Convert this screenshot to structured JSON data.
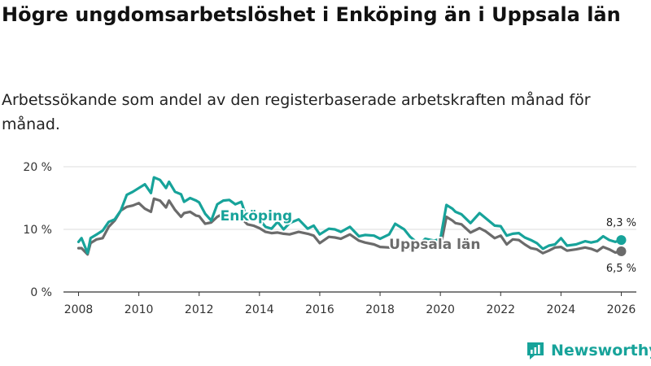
{
  "title": "Högre ungdomsarbetslöshet i Enköping än i Uppsala län",
  "subtitle": "Arbetssökande som andel av den registerbaserade arbetskraften månad för månad.",
  "brand": "Newsworthy",
  "colors": {
    "enkoping": "#17a39a",
    "uppsala": "#6b6b6b",
    "grid": "#dddddd",
    "axis": "#333333"
  },
  "chart_data": {
    "type": "line",
    "title": "Högre ungdomsarbetslöshet i Enköping än i Uppsala län",
    "xlabel": "",
    "ylabel": "",
    "xlim": [
      2007.5,
      2026.5
    ],
    "ylim": [
      0,
      20
    ],
    "y_ticks": [
      0,
      10,
      20
    ],
    "y_tick_labels": [
      "0 %",
      "10 %",
      "20 %"
    ],
    "x_ticks": [
      2008,
      2010,
      2012,
      2014,
      2016,
      2018,
      2020,
      2022,
      2024,
      2026
    ],
    "x_tick_labels": [
      "2008",
      "2010",
      "2012",
      "2014",
      "2016",
      "2018",
      "2020",
      "2022",
      "2024",
      "2026"
    ],
    "grid": true,
    "series": [
      {
        "name": "Enköping",
        "label": "Enköping",
        "color": "#17a39a",
        "end_label": "8,3 %",
        "x": [
          2008.0,
          2008.1,
          2008.3,
          2008.4,
          2008.6,
          2008.8,
          2009.0,
          2009.2,
          2009.4,
          2009.6,
          2009.8,
          2010.0,
          2010.2,
          2010.4,
          2010.5,
          2010.7,
          2010.9,
          2011.0,
          2011.2,
          2011.4,
          2011.5,
          2011.7,
          2011.9,
          2012.0,
          2012.2,
          2012.4,
          2012.6,
          2012.8,
          2013.0,
          2013.2,
          2013.4,
          2013.6,
          2013.8,
          2014.0,
          2014.2,
          2014.4,
          2014.6,
          2014.8,
          2015.0,
          2015.3,
          2015.6,
          2015.8,
          2016.0,
          2016.3,
          2016.5,
          2016.7,
          2017.0,
          2017.3,
          2017.5,
          2017.8,
          2018.0,
          2018.3,
          2018.5,
          2018.8,
          2019.0,
          2019.3,
          2019.5,
          2019.8,
          2020.0,
          2020.2,
          2020.4,
          2020.5,
          2020.7,
          2021.0,
          2021.3,
          2021.5,
          2021.8,
          2022.0,
          2022.2,
          2022.4,
          2022.6,
          2022.8,
          2023.0,
          2023.2,
          2023.4,
          2023.6,
          2023.8,
          2024.0,
          2024.2,
          2024.5,
          2024.8,
          2025.0,
          2025.2,
          2025.4,
          2025.6,
          2025.8,
          2026.0
        ],
        "values": [
          8.0,
          8.6,
          6.2,
          8.6,
          9.2,
          9.8,
          11.2,
          11.6,
          13.0,
          15.5,
          16.0,
          16.6,
          17.2,
          15.8,
          18.3,
          17.9,
          16.6,
          17.6,
          16.0,
          15.6,
          14.4,
          15.0,
          14.6,
          14.3,
          12.5,
          11.4,
          14.0,
          14.6,
          14.7,
          14.0,
          14.4,
          11.5,
          12.3,
          11.6,
          10.4,
          10.1,
          11.2,
          10.0,
          11.0,
          11.6,
          10.1,
          10.6,
          9.2,
          10.1,
          10.0,
          9.6,
          10.4,
          8.9,
          9.1,
          9.0,
          8.5,
          9.2,
          10.9,
          10.0,
          8.8,
          7.6,
          8.5,
          8.2,
          8.5,
          13.9,
          13.3,
          12.8,
          12.4,
          11.0,
          12.6,
          11.8,
          10.6,
          10.5,
          9.0,
          9.3,
          9.4,
          8.7,
          8.3,
          7.8,
          6.9,
          7.4,
          7.6,
          8.6,
          7.4,
          7.6,
          8.1,
          7.9,
          8.1,
          8.9,
          8.3,
          8.0,
          8.3
        ]
      },
      {
        "name": "Uppsala län",
        "label": "Uppsala län",
        "color": "#6b6b6b",
        "end_label": "6,5 %",
        "x": [
          2008.0,
          2008.1,
          2008.3,
          2008.4,
          2008.6,
          2008.8,
          2009.0,
          2009.2,
          2009.4,
          2009.6,
          2009.8,
          2010.0,
          2010.2,
          2010.4,
          2010.5,
          2010.7,
          2010.9,
          2011.0,
          2011.2,
          2011.4,
          2011.5,
          2011.7,
          2011.9,
          2012.0,
          2012.2,
          2012.4,
          2012.6,
          2012.8,
          2013.0,
          2013.2,
          2013.4,
          2013.6,
          2013.8,
          2014.0,
          2014.2,
          2014.4,
          2014.6,
          2014.8,
          2015.0,
          2015.3,
          2015.6,
          2015.8,
          2016.0,
          2016.3,
          2016.5,
          2016.7,
          2017.0,
          2017.3,
          2017.5,
          2017.8,
          2018.0,
          2018.3,
          2018.5,
          2018.8,
          2019.0,
          2019.3,
          2019.5,
          2019.8,
          2020.0,
          2020.2,
          2020.4,
          2020.5,
          2020.7,
          2021.0,
          2021.3,
          2021.5,
          2021.8,
          2022.0,
          2022.2,
          2022.4,
          2022.6,
          2022.8,
          2023.0,
          2023.2,
          2023.4,
          2023.6,
          2023.8,
          2024.0,
          2024.2,
          2024.5,
          2024.8,
          2025.0,
          2025.2,
          2025.4,
          2025.6,
          2025.8,
          2026.0
        ],
        "values": [
          7.0,
          7.0,
          6.0,
          7.8,
          8.4,
          8.6,
          10.4,
          11.4,
          13.0,
          13.6,
          13.8,
          14.2,
          13.3,
          12.8,
          14.9,
          14.6,
          13.5,
          14.6,
          13.1,
          12.0,
          12.6,
          12.8,
          12.2,
          12.1,
          10.9,
          11.1,
          12.0,
          12.5,
          12.5,
          12.2,
          11.8,
          10.8,
          10.6,
          10.2,
          9.6,
          9.4,
          9.5,
          9.3,
          9.2,
          9.6,
          9.3,
          9.0,
          7.8,
          8.8,
          8.7,
          8.5,
          9.2,
          8.2,
          7.9,
          7.6,
          7.2,
          7.1,
          7.5,
          7.2,
          6.9,
          7.0,
          7.1,
          6.9,
          7.1,
          12.0,
          11.4,
          11.0,
          10.8,
          9.5,
          10.2,
          9.7,
          8.6,
          9.0,
          7.6,
          8.4,
          8.3,
          7.6,
          7.0,
          6.8,
          6.2,
          6.6,
          7.1,
          7.2,
          6.6,
          6.8,
          7.1,
          6.9,
          6.5,
          7.2,
          6.8,
          6.3,
          6.5
        ]
      }
    ]
  }
}
